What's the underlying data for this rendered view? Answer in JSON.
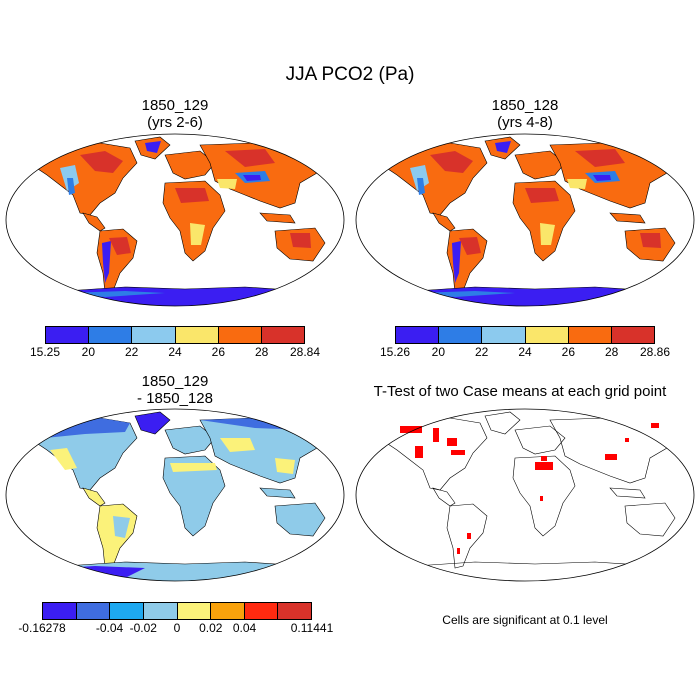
{
  "title": "JJA PCO2 (Pa)",
  "panels": {
    "p1": {
      "title_line1": "1850_129",
      "title_line2": "(yrs 2-6)",
      "colors": [
        "#3b1ef2",
        "#2e7de6",
        "#8ccaee",
        "#fae66a",
        "#f96b10",
        "#d8322a"
      ],
      "ticks": [
        "15.25",
        "20",
        "22",
        "24",
        "26",
        "28",
        "28.84"
      ]
    },
    "p2": {
      "title_line1": "1850_128",
      "title_line2": "(yrs 4-8)",
      "colors": [
        "#3b1ef2",
        "#2e7de6",
        "#8ccaee",
        "#fae66a",
        "#f96b10",
        "#d8322a"
      ],
      "ticks": [
        "15.26",
        "20",
        "22",
        "24",
        "26",
        "28",
        "28.86"
      ]
    },
    "p3": {
      "title_line1": "1850_129",
      "title_line2": "- 1850_128",
      "colors": [
        "#3b1ef2",
        "#3f6de0",
        "#1ea8f0",
        "#8fcbe9",
        "#fbf27a",
        "#f9a20c",
        "#ff2a10",
        "#d8322a"
      ],
      "ticks": [
        "-0.16278",
        "-0.04",
        "-0.02",
        "0",
        "0.02",
        "0.04",
        "0.11441"
      ]
    },
    "p4": {
      "title": "T-Test of two Case means at each grid point",
      "note": "Cells are significant at 0.1 level",
      "signif_color": "#ff0000"
    }
  }
}
